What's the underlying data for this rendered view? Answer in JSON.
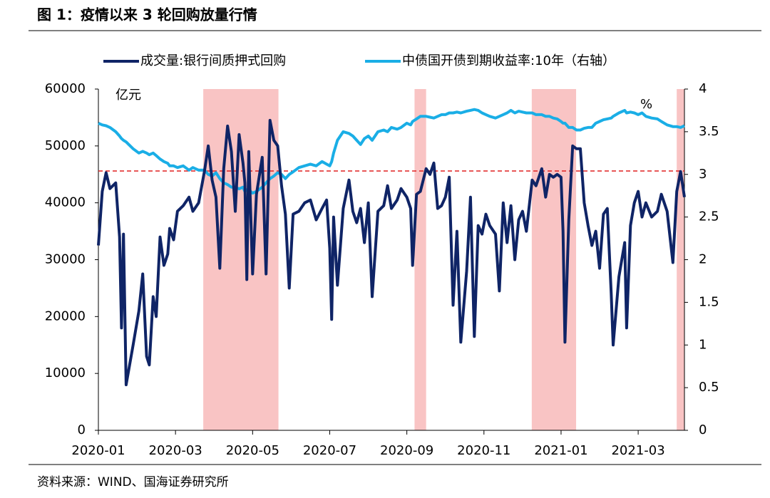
{
  "title": "图 1：疫情以来 3 轮回购放量行情",
  "source": "资料来源：WIND、国海证券研究所",
  "chart_data": {
    "type": "line",
    "y_label": "亿元",
    "y2_label": "%",
    "x": [
      0,
      0.1,
      0.2,
      0.3,
      0.45,
      0.55,
      0.6,
      0.65,
      0.72,
      0.9,
      1.05,
      1.15,
      1.25,
      1.32,
      1.42,
      1.5,
      1.6,
      1.7,
      1.8,
      1.85,
      1.95,
      2.05,
      2.2,
      2.35,
      2.45,
      2.6,
      2.75,
      2.85,
      2.95,
      3.05,
      3.15,
      3.25,
      3.35,
      3.45,
      3.55,
      3.65,
      3.75,
      3.8,
      3.85,
      3.9,
      4.0,
      4.1,
      4.25,
      4.35,
      4.45,
      4.55,
      4.65,
      4.75,
      4.85,
      4.95,
      5.05,
      5.2,
      5.35,
      5.5,
      5.65,
      5.8,
      5.92,
      6.0,
      6.05,
      6.1,
      6.2,
      6.35,
      6.5,
      6.6,
      6.7,
      6.8,
      6.9,
      7.0,
      7.1,
      7.25,
      7.4,
      7.5,
      7.6,
      7.75,
      7.85,
      8.0,
      8.1,
      8.15,
      8.25,
      8.35,
      8.5,
      8.6,
      8.7,
      8.8,
      8.9,
      9.0,
      9.1,
      9.2,
      9.3,
      9.4,
      9.55,
      9.65,
      9.75,
      9.85,
      9.95,
      10.05,
      10.15,
      10.3,
      10.4,
      10.5,
      10.6,
      10.7,
      10.8,
      10.9,
      11.0,
      11.1,
      11.25,
      11.35,
      11.5,
      11.6,
      11.7,
      11.8,
      11.9,
      12.0,
      12.05,
      12.1,
      12.2,
      12.3,
      12.4,
      12.5,
      12.6,
      12.7,
      12.8,
      12.9,
      13.0,
      13.1,
      13.2,
      13.3,
      13.35,
      13.5,
      13.65,
      13.7,
      13.8,
      13.9,
      14.0,
      14.1,
      14.2,
      14.35,
      14.5,
      14.6,
      14.75,
      14.9,
      15.0,
      15.1,
      15.2
    ],
    "series": [
      {
        "name": "成交量:银行间质押式回购",
        "color": "#0f2466",
        "values": [
          32500,
          42000,
          45300,
          42500,
          43500,
          34000,
          18000,
          34500,
          8000,
          15000,
          21000,
          27500,
          13000,
          11500,
          23500,
          20000,
          34000,
          29000,
          31000,
          35500,
          33500,
          38500,
          39500,
          41000,
          38500,
          40000,
          45500,
          50000,
          44000,
          41000,
          28500,
          46000,
          53500,
          49000,
          38500,
          52000,
          47000,
          43500,
          26500,
          49000,
          27500,
          41500,
          48000,
          27500,
          54500,
          51000,
          50000,
          43000,
          38000,
          25000,
          38000,
          38500,
          40000,
          40500,
          37000,
          39000,
          40500,
          32000,
          19500,
          37500,
          25500,
          39000,
          44000,
          38500,
          36500,
          39000,
          33000,
          40000,
          23500,
          38500,
          39500,
          43000,
          39000,
          40500,
          42500,
          41000,
          39000,
          29000,
          41500,
          42000,
          46000,
          45000,
          47000,
          39000,
          39500,
          41000,
          44500,
          22000,
          35000,
          15500,
          28000,
          41000,
          16500,
          36000,
          34500,
          38000,
          36000,
          34500,
          24500,
          40000,
          33000,
          39500,
          30000,
          37000,
          38500,
          35000,
          44000,
          43000,
          46000,
          41000,
          45000,
          44500,
          45000,
          44500,
          35000,
          15500,
          37000,
          50000,
          49500,
          49500,
          40000,
          36000,
          32500,
          35000,
          28500,
          38000,
          39000,
          24000,
          15000,
          27000,
          33000,
          18000,
          36000,
          40000,
          42000,
          37500,
          40000,
          37500,
          38500,
          41500,
          38500,
          29500,
          42000,
          45500,
          41000
        ]
      },
      {
        "name": "中债国开债到期收益率:10年（右轴）",
        "color": "#1aaee6",
        "axis": "y2",
        "values": [
          3.6,
          3.58,
          3.57,
          3.55,
          3.5,
          3.45,
          3.42,
          3.4,
          3.38,
          3.3,
          3.25,
          3.27,
          3.25,
          3.23,
          3.25,
          3.22,
          3.18,
          3.15,
          3.13,
          3.1,
          3.1,
          3.08,
          3.1,
          3.05,
          3.08,
          3.05,
          3.05,
          3.0,
          2.98,
          3.02,
          2.95,
          2.9,
          2.88,
          2.85,
          2.85,
          2.83,
          2.85,
          2.8,
          2.82,
          2.82,
          2.78,
          2.8,
          2.85,
          2.9,
          2.95,
          2.98,
          3.02,
          3.0,
          2.95,
          3.0,
          3.03,
          3.08,
          3.1,
          3.12,
          3.1,
          3.15,
          3.12,
          3.1,
          3.15,
          3.25,
          3.4,
          3.5,
          3.48,
          3.45,
          3.4,
          3.35,
          3.42,
          3.45,
          3.4,
          3.5,
          3.52,
          3.5,
          3.55,
          3.53,
          3.55,
          3.6,
          3.58,
          3.62,
          3.65,
          3.68,
          3.68,
          3.67,
          3.66,
          3.68,
          3.7,
          3.7,
          3.72,
          3.72,
          3.73,
          3.72,
          3.74,
          3.75,
          3.76,
          3.75,
          3.72,
          3.7,
          3.68,
          3.66,
          3.68,
          3.7,
          3.72,
          3.75,
          3.72,
          3.74,
          3.73,
          3.72,
          3.72,
          3.7,
          3.7,
          3.68,
          3.68,
          3.66,
          3.65,
          3.62,
          3.6,
          3.6,
          3.55,
          3.55,
          3.52,
          3.52,
          3.54,
          3.55,
          3.55,
          3.6,
          3.62,
          3.64,
          3.65,
          3.66,
          3.68,
          3.72,
          3.75,
          3.72,
          3.73,
          3.72,
          3.7,
          3.72,
          3.68,
          3.66,
          3.65,
          3.62,
          3.58,
          3.56,
          3.56,
          3.55,
          3.57
        ]
      }
    ],
    "shaded_ranges": [
      [
        2.72,
        4.67
      ],
      [
        8.2,
        8.5
      ],
      [
        11.24,
        12.39
      ],
      [
        15.0,
        15.2
      ]
    ],
    "shade_color": "#f9c4c4",
    "reference_line": 45600,
    "reference_color": "#e02020",
    "xlim": [
      0,
      15.2
    ],
    "xticks": [
      {
        "value": 0,
        "label": "2020-01"
      },
      {
        "value": 2,
        "label": "2020-03"
      },
      {
        "value": 4,
        "label": "2020-05"
      },
      {
        "value": 6,
        "label": "2020-07"
      },
      {
        "value": 8,
        "label": "2020-09"
      },
      {
        "value": 10,
        "label": "2020-11"
      },
      {
        "value": 12,
        "label": "2021-01"
      },
      {
        "value": 14,
        "label": "2021-03"
      }
    ],
    "ylim": [
      0,
      60000
    ],
    "yticks": [
      0,
      10000,
      20000,
      30000,
      40000,
      50000,
      60000
    ],
    "y2lim": [
      0,
      4
    ],
    "y2ticks": [
      0,
      0.5,
      1,
      1.5,
      2,
      2.5,
      3,
      3.5,
      4
    ],
    "legend": "top"
  }
}
